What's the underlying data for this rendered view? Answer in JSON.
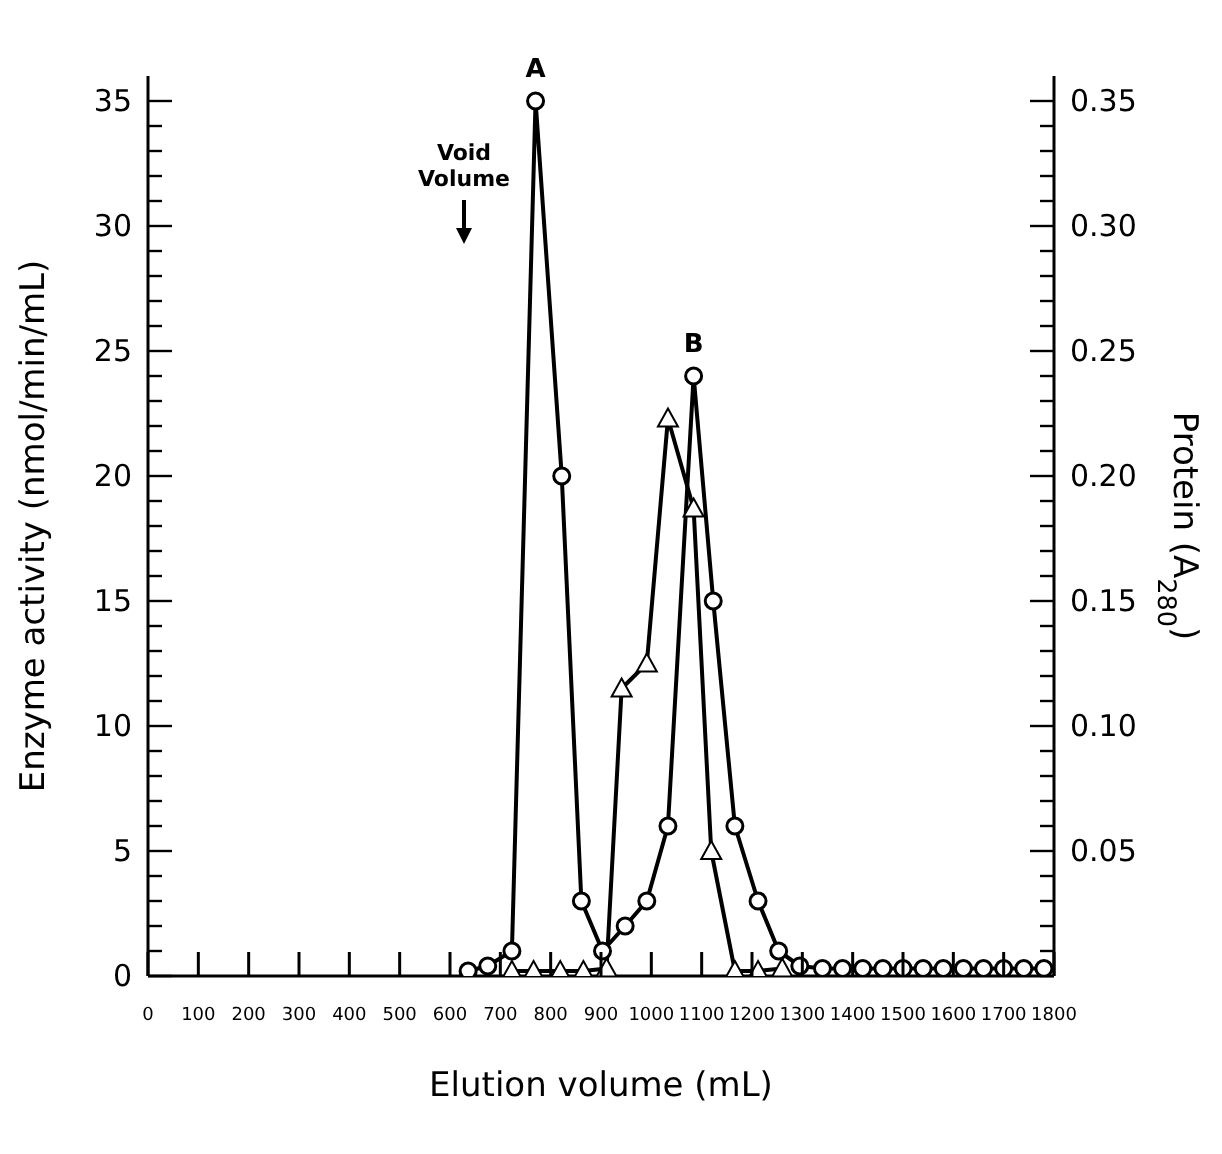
{
  "chart_data": {
    "type": "line",
    "xlabel": "Elution volume (mL)",
    "ylabel": "Enzyme activity (nmol/min/mL)",
    "y2label": "Protein (A$_{280}$)",
    "xlim": [
      0,
      1800
    ],
    "xticks": [
      0,
      100,
      200,
      300,
      400,
      500,
      600,
      700,
      800,
      900,
      1000,
      1100,
      1200,
      1300,
      1400,
      1500,
      1600,
      1700,
      1800
    ],
    "ylim": [
      0,
      36
    ],
    "yticks": [
      0,
      {
        "value": 1,
        "label": null
      },
      {
        "value": 2,
        "label": null
      },
      {
        "value": 3,
        "label": null
      },
      {
        "value": 4,
        "label": null
      },
      5,
      {
        "value": 6,
        "label": null
      },
      {
        "value": 7,
        "label": null
      },
      {
        "value": 8,
        "label": null
      },
      {
        "value": 9,
        "label": null
      },
      10,
      {
        "value": 11,
        "label": null
      },
      {
        "value": 12,
        "label": null
      },
      {
        "value": 13,
        "label": null
      },
      {
        "value": 14,
        "label": null
      },
      15,
      {
        "value": 16,
        "label": null
      },
      {
        "value": 17,
        "label": null
      },
      {
        "value": 18,
        "label": null
      },
      {
        "value": 19,
        "label": null
      },
      20,
      {
        "value": 21,
        "label": null
      },
      {
        "value": 22,
        "label": null
      },
      {
        "value": 23,
        "label": null
      },
      {
        "value": 24,
        "label": null
      },
      25,
      {
        "value": 26,
        "label": null
      },
      {
        "value": 27,
        "label": null
      },
      {
        "value": 28,
        "label": null
      },
      {
        "value": 29,
        "label": null
      },
      30,
      {
        "value": 31,
        "label": null
      },
      {
        "value": 32,
        "label": null
      },
      {
        "value": 33,
        "label": null
      },
      {
        "value": 34,
        "label": null
      },
      35
    ],
    "y2lim": [
      0,
      0.36
    ],
    "y2ticks": [
      {
        "value": 0,
        "label": null
      },
      {
        "value": 0.01,
        "label": null
      },
      {
        "value": 0.02,
        "label": null
      },
      {
        "value": 0.03,
        "label": null
      },
      {
        "value": 0.04,
        "label": null
      },
      0.05,
      {
        "value": 0.06,
        "label": null
      },
      {
        "value": 0.07,
        "label": null
      },
      {
        "value": 0.08,
        "label": null
      },
      {
        "value": 0.09,
        "label": null
      },
      {
        "value": 0.1,
        "label": "0.10"
      },
      {
        "value": 0.11,
        "label": null
      },
      {
        "value": 0.12,
        "label": null
      },
      {
        "value": 0.13,
        "label": null
      },
      {
        "value": 0.14,
        "label": null
      },
      0.15,
      {
        "value": 0.16,
        "label": null
      },
      {
        "value": 0.17,
        "label": null
      },
      {
        "value": 0.18,
        "label": null
      },
      {
        "value": 0.19,
        "label": null
      },
      {
        "value": 0.2,
        "label": "0.20"
      },
      {
        "value": 0.21,
        "label": null
      },
      {
        "value": 0.22,
        "label": null
      },
      {
        "value": 0.23,
        "label": null
      },
      {
        "value": 0.24,
        "label": null
      },
      0.25,
      {
        "value": 0.26,
        "label": null
      },
      {
        "value": 0.27,
        "label": null
      },
      {
        "value": 0.28,
        "label": null
      },
      {
        "value": 0.29,
        "label": null
      },
      {
        "value": 0.3,
        "label": "0.30"
      },
      {
        "value": 0.31,
        "label": null
      },
      {
        "value": 0.32,
        "label": null
      },
      {
        "value": 0.33,
        "label": null
      },
      {
        "value": 0.34,
        "label": null
      },
      0.35
    ],
    "line_style": "solid",
    "series": [
      {
        "color": "#000000",
        "marker": "circle",
        "x": [
          636,
          675,
          723,
          770,
          822,
          861,
          903,
          948,
          991,
          1033,
          1084,
          1123,
          1166,
          1212,
          1253,
          1295,
          1340,
          1380,
          1420,
          1460,
          1500,
          1540,
          1580,
          1620,
          1660,
          1700,
          1740,
          1780
        ],
        "values": [
          0.2,
          0.4,
          1,
          35,
          20,
          3,
          1,
          2,
          3,
          6,
          24,
          15,
          6,
          3,
          1,
          0.4,
          0.3,
          0.3,
          0.3,
          0.3,
          0.3,
          0.3,
          0.3,
          0.3,
          0.3,
          0.3,
          0.3,
          0.3
        ]
      },
      {
        "color": "#000000",
        "marker": "triangle",
        "axis": "y2",
        "x": [
          723,
          766,
          819,
          865,
          911,
          941,
          991,
          1033,
          1084,
          1119,
          1166,
          1212,
          1260
        ],
        "values": [
          0.002,
          0.002,
          0.002,
          0.002,
          0.003,
          0.115,
          0.125,
          0.223,
          0.187,
          0.05,
          0.002,
          0.002,
          0.003
        ]
      }
    ],
    "annotations": [
      {
        "text": "A",
        "x": 770,
        "y": 35
      },
      {
        "text": "B",
        "x": 1084,
        "y": 24
      },
      "Void Volume"
    ]
  }
}
